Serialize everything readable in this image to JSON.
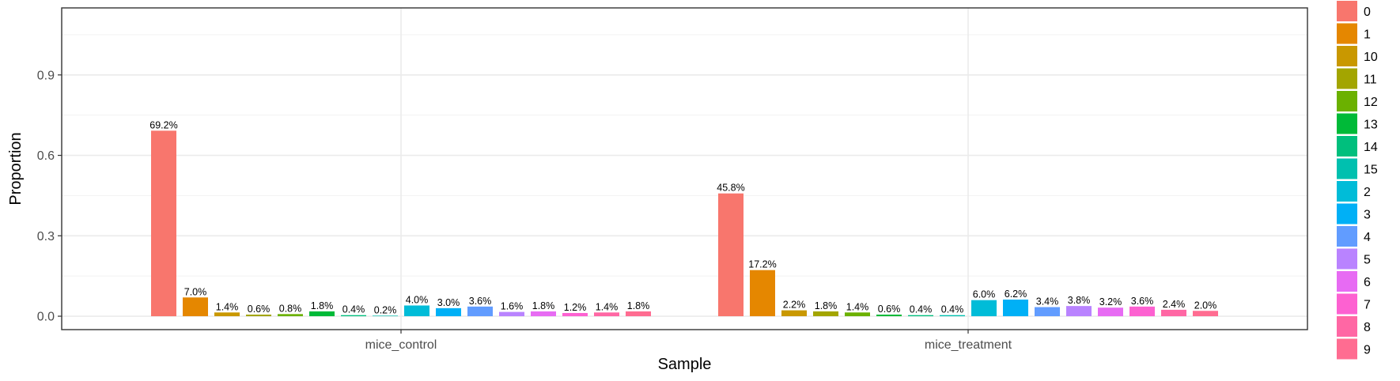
{
  "chart_data": {
    "type": "bar",
    "xlabel": "Sample",
    "ylabel": "Proportion",
    "categories": [
      "mice_control",
      "mice_treatment"
    ],
    "ylim": [
      -0.05,
      1.15
    ],
    "yticks": [
      0.0,
      0.3,
      0.6,
      0.9
    ],
    "ytick_labels": [
      "0.0",
      "0.3",
      "0.6",
      "0.9"
    ],
    "grid": true,
    "legend_position": "right",
    "series": [
      {
        "name": "0",
        "color": "#F8766D",
        "values": [
          0.692,
          0.458
        ],
        "labels": [
          "69.2%",
          "45.8%"
        ]
      },
      {
        "name": "1",
        "color": "#E58700",
        "values": [
          0.07,
          0.172
        ],
        "labels": [
          "7.0%",
          "17.2%"
        ]
      },
      {
        "name": "10",
        "color": "#C99800",
        "values": [
          0.014,
          0.022
        ],
        "labels": [
          "1.4%",
          "2.2%"
        ]
      },
      {
        "name": "11",
        "color": "#A3A500",
        "values": [
          0.006,
          0.018
        ],
        "labels": [
          "0.6%",
          "1.8%"
        ]
      },
      {
        "name": "12",
        "color": "#6BB100",
        "values": [
          0.008,
          0.014
        ],
        "labels": [
          "0.8%",
          "1.4%"
        ]
      },
      {
        "name": "13",
        "color": "#00BA38",
        "values": [
          0.018,
          0.006
        ],
        "labels": [
          "1.8%",
          "0.6%"
        ]
      },
      {
        "name": "14",
        "color": "#00BF7D",
        "values": [
          0.004,
          0.004
        ],
        "labels": [
          "0.4%",
          "0.4%"
        ]
      },
      {
        "name": "15",
        "color": "#00C0AF",
        "values": [
          0.002,
          0.004
        ],
        "labels": [
          "0.2%",
          "0.4%"
        ]
      },
      {
        "name": "2",
        "color": "#00BCD8",
        "values": [
          0.04,
          0.06
        ],
        "labels": [
          "4.0%",
          "6.0%"
        ]
      },
      {
        "name": "3",
        "color": "#00B0F6",
        "values": [
          0.03,
          0.062
        ],
        "labels": [
          "3.0%",
          "6.2%"
        ]
      },
      {
        "name": "4",
        "color": "#619CFF",
        "values": [
          0.036,
          0.034
        ],
        "labels": [
          "3.6%",
          "3.4%"
        ]
      },
      {
        "name": "5",
        "color": "#B983FF",
        "values": [
          0.016,
          0.038
        ],
        "labels": [
          "1.6%",
          "3.8%"
        ]
      },
      {
        "name": "6",
        "color": "#E76BF3",
        "values": [
          0.018,
          0.032
        ],
        "labels": [
          "1.8%",
          "3.2%"
        ]
      },
      {
        "name": "7",
        "color": "#FD61D1",
        "values": [
          0.012,
          0.036
        ],
        "labels": [
          "1.2%",
          "3.6%"
        ]
      },
      {
        "name": "8",
        "color": "#FF67A4",
        "values": [
          0.014,
          0.024
        ],
        "labels": [
          "1.4%",
          "2.4%"
        ]
      },
      {
        "name": "9",
        "color": "#FF6C91",
        "values": [
          0.018,
          0.02
        ],
        "labels": [
          "1.8%",
          "2.0%"
        ]
      }
    ]
  }
}
